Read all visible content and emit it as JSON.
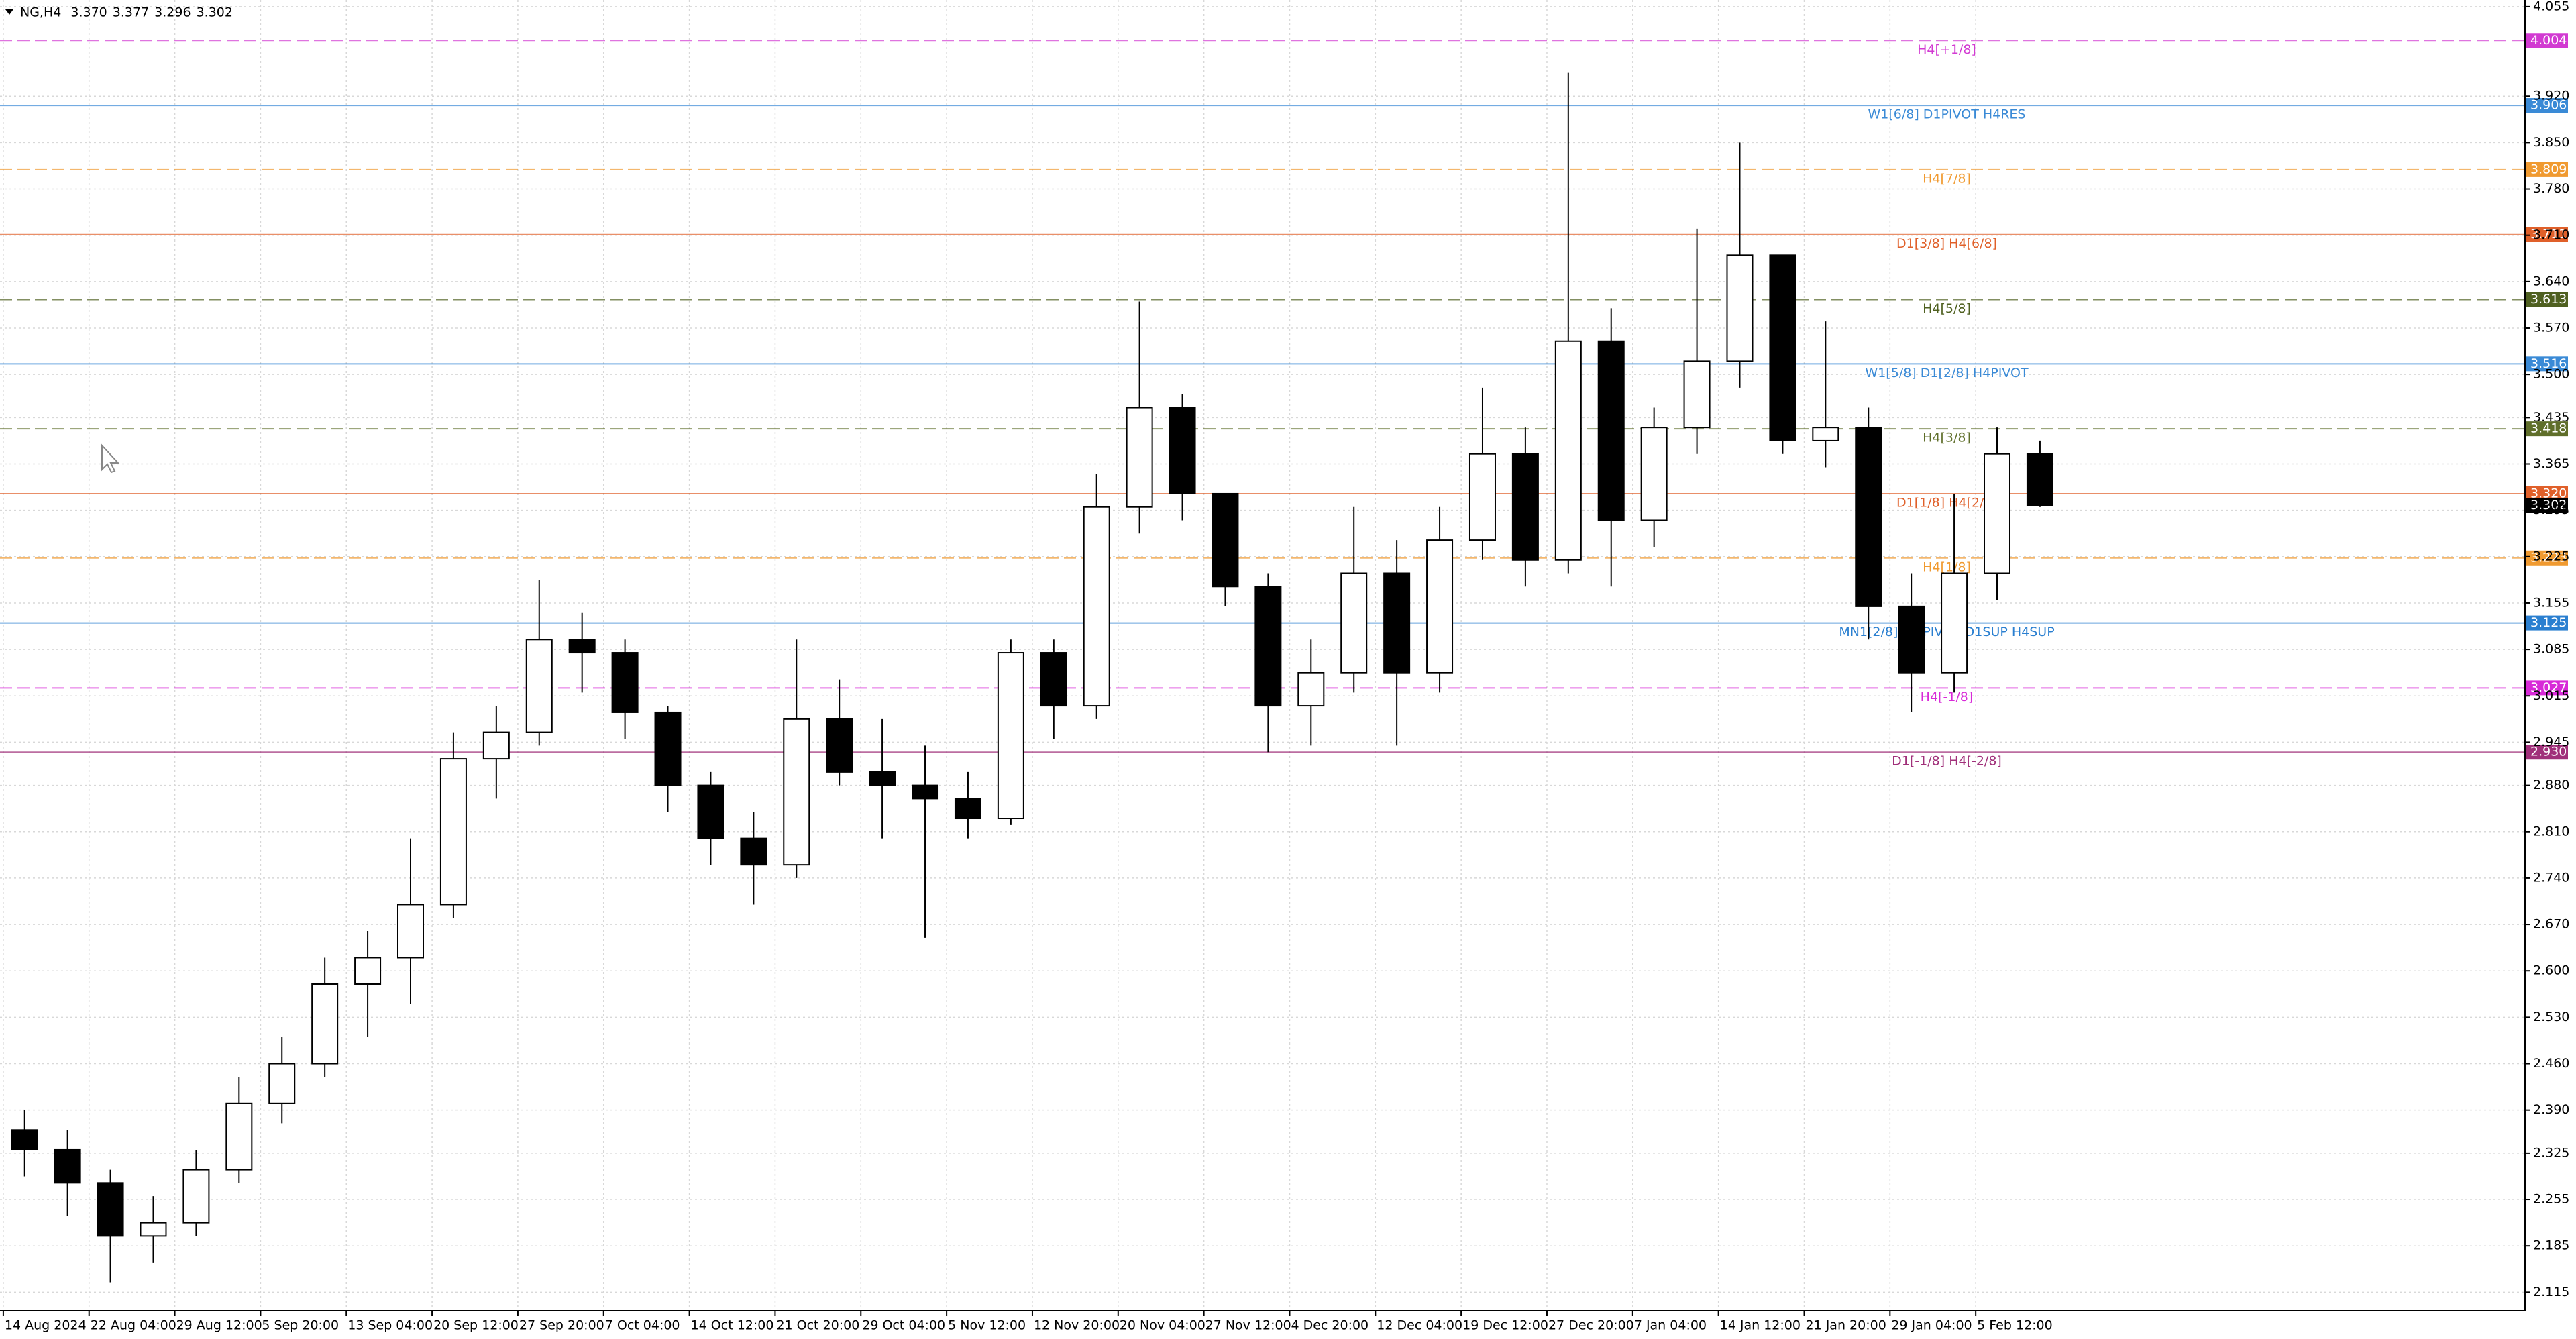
{
  "chart_data": {
    "type": "candlestick",
    "header": {
      "symbol": "NG,H4",
      "values": [
        3.37,
        3.377,
        3.296,
        3.302
      ],
      "value_labels": [
        "3.370",
        "3.377",
        "3.296",
        "3.302"
      ]
    },
    "categories": [
      "14 Aug 2024",
      null,
      "22 Aug 04:00",
      null,
      "29 Aug 12:00",
      null,
      "5 Sep 20:00",
      null,
      "13 Sep 04:00",
      null,
      "20 Sep 12:00",
      null,
      "27 Sep 20:00",
      null,
      "7 Oct 04:00",
      null,
      "14 Oct 12:00",
      null,
      "21 Oct 20:00",
      null,
      "29 Oct 04:00",
      null,
      "5 Nov 12:00",
      null,
      "12 Nov 20:00",
      null,
      "20 Nov 04:00",
      null,
      "27 Nov 12:00",
      null,
      "4 Dec 20:00",
      null,
      "12 Dec 04:00",
      null,
      "19 Dec 12:00",
      null,
      "27 Dec 20:00",
      null,
      "7 Jan 04:00",
      null,
      "14 Jan 12:00",
      null,
      "21 Jan 20:00",
      null,
      "29 Jan 04:00",
      null,
      "5 Feb 12:00",
      null
    ],
    "candles": {
      "open": [
        2.36,
        2.33,
        2.28,
        2.2,
        2.22,
        2.3,
        2.4,
        2.46,
        2.58,
        2.62,
        2.7,
        2.92,
        2.96,
        3.1,
        3.08,
        2.99,
        2.88,
        2.8,
        2.76,
        2.98,
        2.9,
        2.88,
        2.86,
        2.83,
        3.08,
        3.0,
        3.3,
        3.45,
        3.32,
        3.18,
        3.0,
        3.05,
        3.2,
        3.05,
        3.25,
        3.38,
        3.22,
        3.55,
        3.28,
        3.42,
        3.52,
        3.68,
        3.4,
        3.42,
        3.15,
        3.05,
        3.2,
        3.38
      ],
      "high": [
        2.39,
        2.36,
        2.3,
        2.26,
        2.33,
        2.44,
        2.5,
        2.62,
        2.66,
        2.8,
        2.96,
        3.0,
        3.19,
        3.14,
        3.1,
        3.0,
        2.9,
        2.84,
        3.1,
        3.04,
        2.98,
        2.94,
        2.9,
        3.1,
        3.1,
        3.35,
        3.61,
        3.47,
        3.3,
        3.2,
        3.1,
        3.3,
        3.25,
        3.3,
        3.48,
        3.42,
        3.955,
        3.6,
        3.45,
        3.72,
        3.85,
        3.68,
        3.58,
        3.45,
        3.2,
        3.32,
        3.42,
        3.4
      ],
      "low": [
        2.29,
        2.23,
        2.13,
        2.16,
        2.2,
        2.28,
        2.37,
        2.44,
        2.5,
        2.55,
        2.68,
        2.86,
        2.94,
        3.02,
        2.95,
        2.84,
        2.76,
        2.7,
        2.74,
        2.88,
        2.8,
        2.65,
        2.8,
        2.82,
        2.95,
        2.98,
        3.26,
        3.28,
        3.15,
        2.93,
        2.94,
        3.02,
        2.94,
        3.02,
        3.22,
        3.18,
        3.2,
        3.18,
        3.24,
        3.38,
        3.48,
        3.38,
        3.36,
        3.1,
        2.99,
        3.02,
        3.16,
        3.3
      ],
      "close": [
        2.33,
        2.28,
        2.2,
        2.22,
        2.3,
        2.4,
        2.46,
        2.58,
        2.62,
        2.7,
        2.92,
        2.96,
        3.1,
        3.08,
        2.99,
        2.88,
        2.8,
        2.76,
        2.98,
        2.9,
        2.88,
        2.86,
        2.83,
        3.08,
        3.0,
        3.3,
        3.45,
        3.32,
        3.18,
        3.0,
        3.05,
        3.2,
        3.05,
        3.25,
        3.38,
        3.22,
        3.55,
        3.28,
        3.42,
        3.52,
        3.68,
        3.4,
        3.42,
        3.15,
        3.05,
        3.2,
        3.38,
        3.302
      ]
    },
    "ylim": [
      2.087,
      4.065
    ],
    "yticks": [
      4.055,
      {
        "value": 3.92,
        "label": "3.920"
      },
      {
        "value": 3.85,
        "label": "3.850"
      },
      {
        "value": 3.78,
        "label": "3.780"
      },
      {
        "value": 3.71,
        "label": "3.710"
      },
      {
        "value": 3.64,
        "label": "3.640"
      },
      {
        "value": 3.57,
        "label": "3.570"
      },
      {
        "value": 3.5,
        "label": "3.500"
      },
      3.435,
      3.365,
      3.295,
      3.225,
      3.155,
      3.085,
      3.015,
      2.945,
      {
        "value": 2.88,
        "label": "2.880"
      },
      {
        "value": 2.81,
        "label": "2.810"
      },
      {
        "value": 2.74,
        "label": "2.740"
      },
      {
        "value": 2.67,
        "label": "2.670"
      },
      {
        "value": 2.6,
        "label": "2.600"
      },
      {
        "value": 2.53,
        "label": "2.530"
      },
      {
        "value": 2.46,
        "label": "2.460"
      },
      {
        "value": 2.39,
        "label": "2.390"
      },
      2.325,
      2.255,
      2.185,
      2.115
    ],
    "grid": true,
    "levels": [
      {
        "name": "H4[+1/8]",
        "value": 4.004,
        "label": "4.004",
        "color": "#d23ad2",
        "dashed": true
      },
      {
        "name": "W1[6/8] D1PIVOT H4RES",
        "value": 3.906,
        "label": "3.906",
        "color": "#3a8ad6",
        "dashed": false
      },
      {
        "name": "H4[7/8]",
        "value": 3.809,
        "label": "3.809",
        "color": "#f09a30",
        "dashed": true
      },
      {
        "name": "D1[3/8] H4[6/8]",
        "value": 3.711,
        "label": "3.711",
        "color": "#e0602a",
        "dashed": false
      },
      {
        "name": "H4[5/8]",
        "value": 3.613,
        "label": "3.613",
        "color": "#4f6020",
        "dashed": true
      },
      {
        "name": "W1[5/8] D1[2/8] H4PIVOT",
        "value": 3.516,
        "label": "3.516",
        "color": "#3a8ad6",
        "dashed": false
      },
      {
        "name": "H4[3/8]",
        "value": 3.418,
        "label": "3.418",
        "color": "#5f6e2a",
        "dashed": true
      },
      {
        "name": "D1[1/8] H4[2/8]",
        "value": 3.32,
        "label": "3.320",
        "color": "#e0602a",
        "dashed": false
      },
      {
        "name": "H4[1/8]",
        "value": 3.223,
        "label": "3.223",
        "color": "#f09a30",
        "dashed": true
      },
      {
        "name": "MN1[2/8] W1PIVOT D1SUP H4SUP",
        "value": 3.125,
        "label": "3.125",
        "color": "#2a7fd0",
        "dashed": false
      },
      {
        "name": "H4[-1/8]",
        "value": 3.027,
        "label": "3.027",
        "color": "#d82ad8",
        "dashed": true
      },
      {
        "name": "D1[-1/8] H4[-2/8]",
        "value": 2.93,
        "label": "2.930",
        "color": "#a0307a",
        "dashed": false
      }
    ],
    "last_price": 3.302
  }
}
